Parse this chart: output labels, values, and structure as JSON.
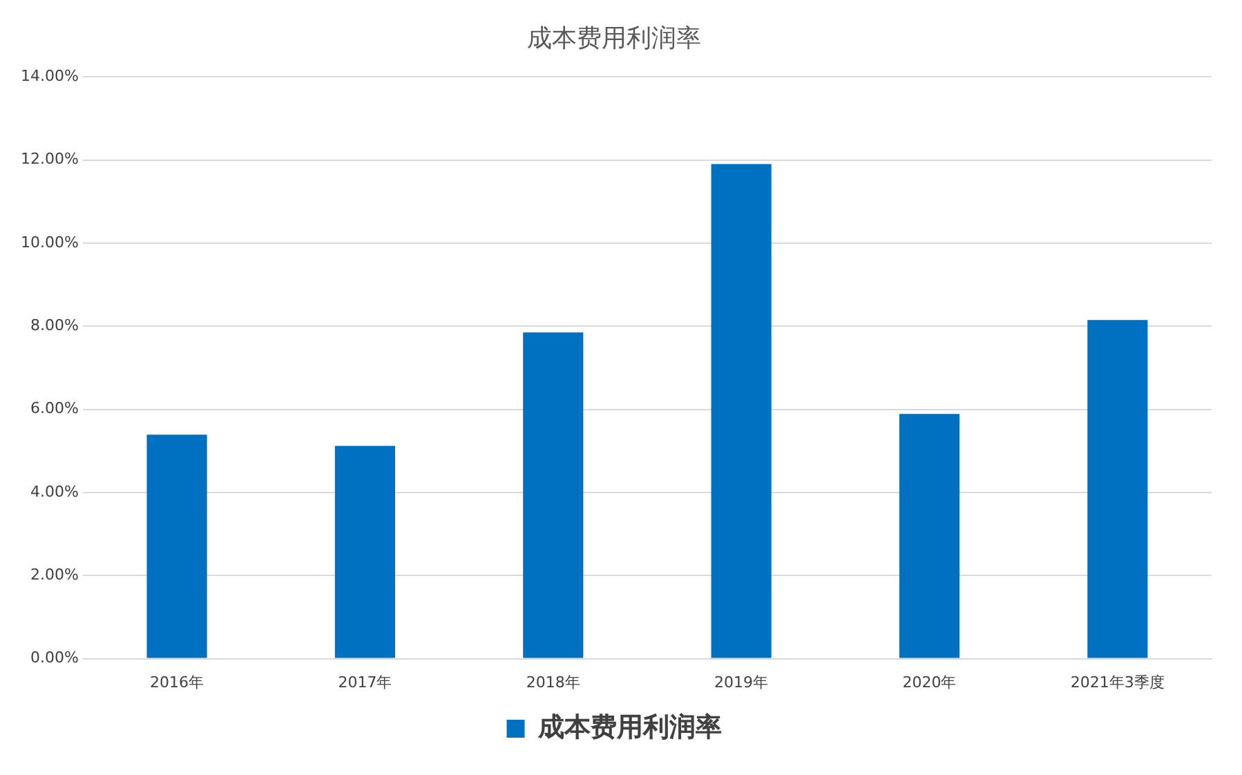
{
  "chart_data": {
    "type": "bar",
    "title": "成本费用利润率",
    "categories": [
      "2016年",
      "2017年",
      "2018年",
      "2019年",
      "2020年",
      "2021年3季度"
    ],
    "series": [
      {
        "name": "成本费用利润率",
        "color": "#0070c0",
        "values": [
          5.39,
          5.12,
          7.85,
          11.9,
          5.89,
          8.15
        ]
      }
    ],
    "ylim": [
      0,
      14
    ],
    "yticks": [
      {
        "value": 0,
        "label": "0.00%"
      },
      {
        "value": 2,
        "label": "2.00%"
      },
      {
        "value": 4,
        "label": "4.00%"
      },
      {
        "value": 6,
        "label": "6.00%"
      },
      {
        "value": 8,
        "label": "8.00%"
      },
      {
        "value": 10,
        "label": "10.00%"
      },
      {
        "value": 12,
        "label": "12.00%"
      },
      {
        "value": 14,
        "label": "14.00%"
      }
    ],
    "grid": "y",
    "legend": "bottom"
  }
}
